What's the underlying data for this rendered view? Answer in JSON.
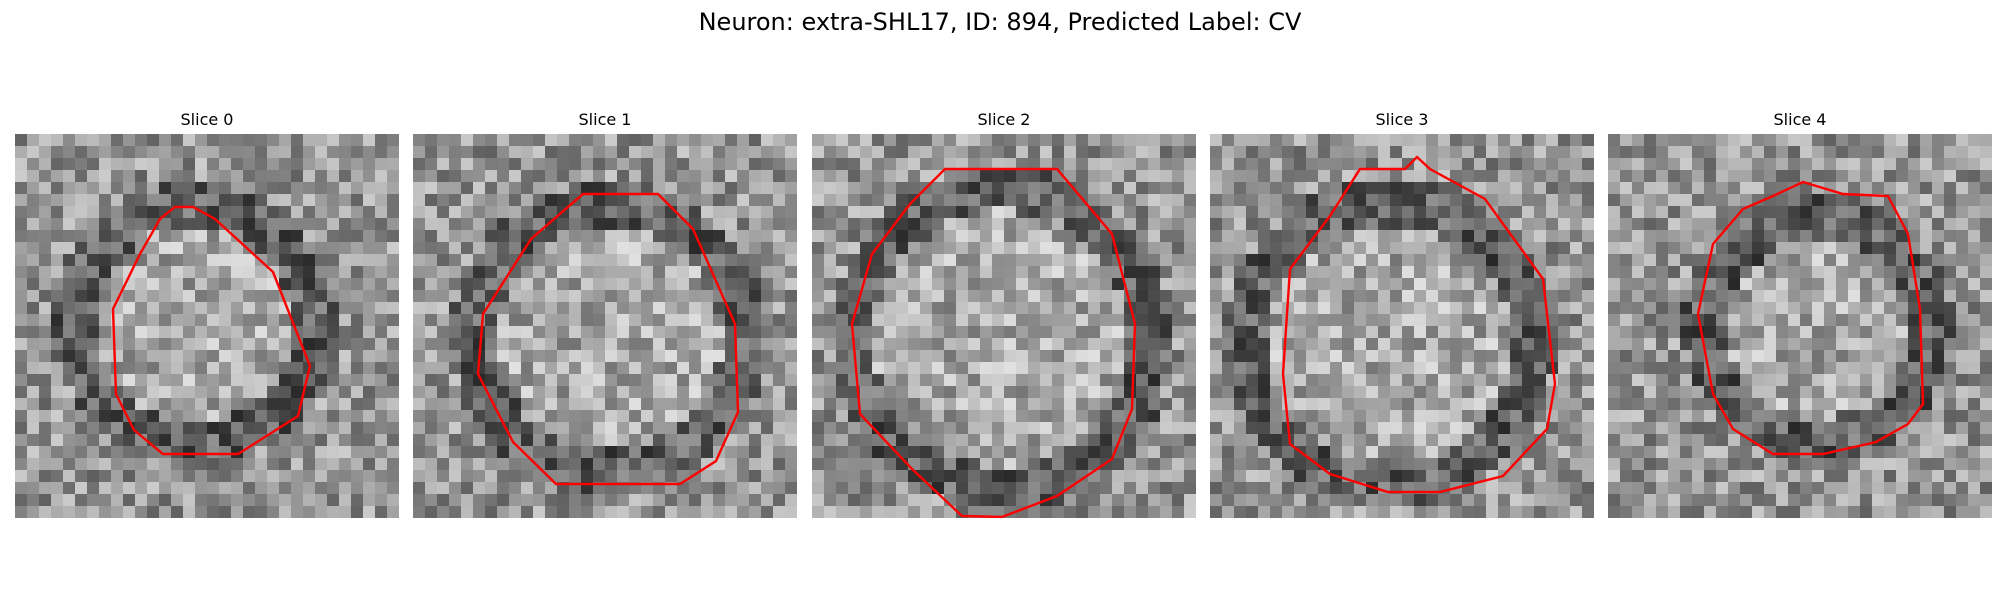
{
  "figure": {
    "title": "Neuron: extra-SHL17, ID: 894, Predicted Label: CV",
    "outline_color": "#ff0000",
    "colormap": "gray",
    "panels": [
      {
        "title": "Slice 0"
      },
      {
        "title": "Slice 1"
      },
      {
        "title": "Slice 2"
      },
      {
        "title": "Slice 3"
      },
      {
        "title": "Slice 4"
      }
    ]
  }
}
